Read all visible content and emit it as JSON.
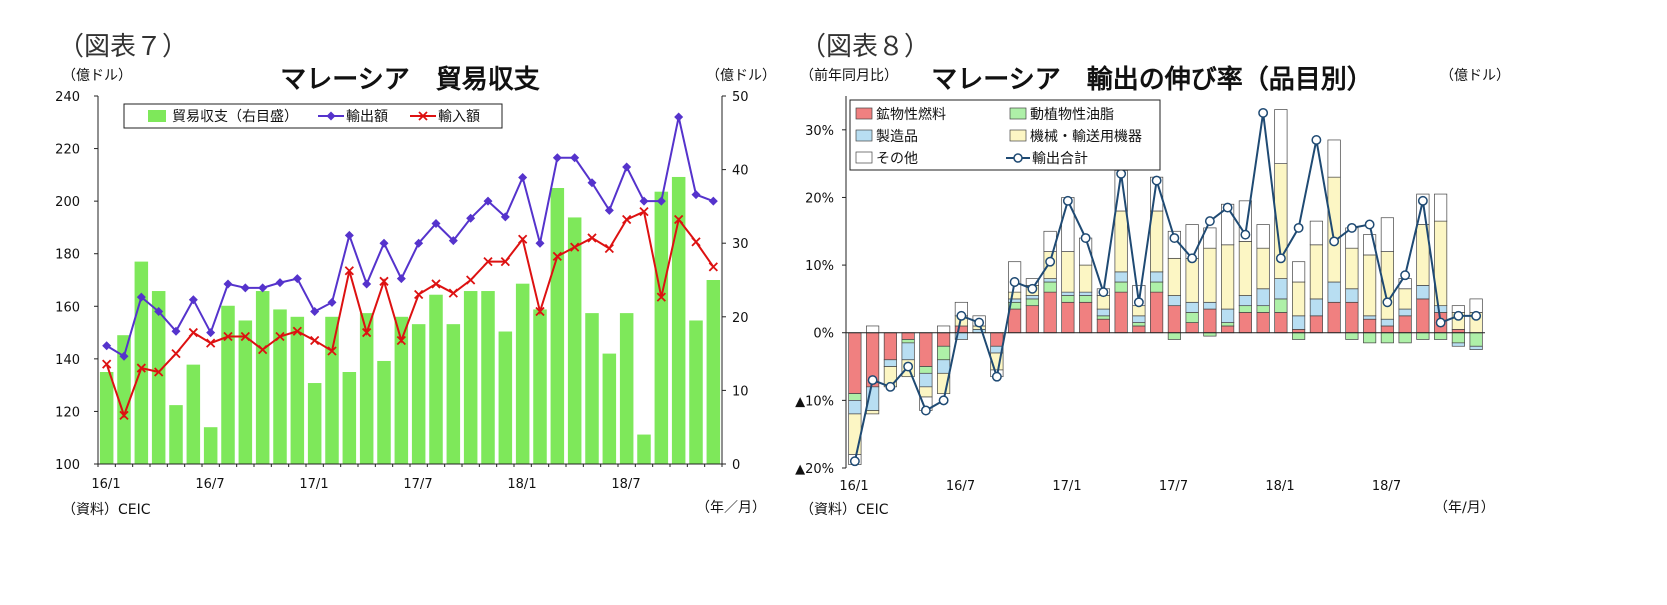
{
  "figures": {
    "fig7_label": "（図表７）",
    "fig8_label": "（図表８）"
  },
  "chart_data": [
    {
      "type": "bar+line",
      "title": "マレーシア　貿易収支",
      "left_unit": "（億ドル）",
      "right_unit": "（億ドル）",
      "x_unit": "（年／月）",
      "source": "（資料）CEIC",
      "left_axis": {
        "min": 100,
        "max": 240,
        "ticks": [
          100,
          120,
          140,
          160,
          180,
          200,
          220,
          240
        ]
      },
      "right_axis": {
        "min": 0,
        "max": 50,
        "ticks": [
          0,
          10,
          20,
          30,
          40,
          50
        ]
      },
      "x_labels": [
        {
          "i": 0,
          "text": "16/1"
        },
        {
          "i": 6,
          "text": "16/7"
        },
        {
          "i": 12,
          "text": "17/1"
        },
        {
          "i": 18,
          "text": "17/7"
        },
        {
          "i": 24,
          "text": "18/1"
        },
        {
          "i": 30,
          "text": "18/7"
        }
      ],
      "legend": {
        "bar": "貿易収支（右目盛）",
        "export": "輸出額",
        "import": "輸入額"
      },
      "colors": {
        "bar": "#7ee85a",
        "export": "#5533cc",
        "import": "#dd1111"
      },
      "trade_balance": [
        12.5,
        17.5,
        27.5,
        23.5,
        8,
        13.5,
        5,
        21.5,
        19.5,
        23.5,
        21,
        20,
        11,
        20,
        12.5,
        20.5,
        14,
        20,
        19,
        23,
        19,
        23.5,
        23.5,
        18,
        24.5,
        21,
        37.5,
        33.5,
        20.5,
        15,
        20.5,
        4,
        37,
        39,
        19.5,
        25
      ],
      "exports": [
        145,
        141,
        163.5,
        158,
        150.5,
        162.5,
        150,
        168.5,
        167,
        167,
        169,
        170.5,
        158,
        161.5,
        187,
        168.5,
        184,
        170.5,
        184,
        191.5,
        185,
        193.5,
        200,
        194,
        209,
        184,
        216.5,
        216.5,
        207,
        196.5,
        213,
        200,
        200,
        232,
        202.5,
        200
      ],
      "imports": [
        138,
        118.5,
        136.5,
        135,
        142,
        150,
        146,
        148.5,
        148.5,
        143.5,
        148.5,
        150.5,
        147,
        143,
        173.5,
        150,
        169.5,
        147,
        164.5,
        168.5,
        165,
        170,
        177,
        177,
        185.5,
        158,
        179,
        182.5,
        186,
        182,
        193,
        196,
        163.5,
        193,
        184.5,
        175
      ]
    },
    {
      "type": "stacked-bar+line",
      "title": "マレーシア　輸出の伸び率（品目別）",
      "left_unit": "（前年同月比）",
      "right_unit": "（億ドル）",
      "x_unit": "（年/月）",
      "source": "（資料）CEIC",
      "y_axis": {
        "min": -20,
        "max": 35,
        "ticks": [
          {
            "v": -20,
            "text": "▲20%"
          },
          {
            "v": -10,
            "text": "▲10%"
          },
          {
            "v": 0,
            "text": "0%"
          },
          {
            "v": 10,
            "text": "10%"
          },
          {
            "v": 20,
            "text": "20%"
          },
          {
            "v": 30,
            "text": "30%"
          }
        ]
      },
      "x_labels": [
        {
          "i": 0,
          "text": "16/1"
        },
        {
          "i": 6,
          "text": "16/7"
        },
        {
          "i": 12,
          "text": "17/1"
        },
        {
          "i": 18,
          "text": "17/7"
        },
        {
          "i": 24,
          "text": "18/1"
        },
        {
          "i": 30,
          "text": "18/7"
        }
      ],
      "legend": {
        "mineral": "鉱物性燃料",
        "oils": "動植物性油脂",
        "manufactured": "製造品",
        "machinery": "機械・輸送用機器",
        "other": "その他",
        "total": "輸出合計"
      },
      "colors": {
        "mineral": "#f08080",
        "oils": "#aef0a8",
        "manufactured": "#b8def2",
        "machinery": "#fcf6c4",
        "other": "#ffffff",
        "total": "#1f4a73"
      },
      "mineral": [
        -9,
        -8,
        -4,
        -1,
        -5,
        -2,
        1,
        0,
        -2,
        3.5,
        4,
        6,
        4.5,
        4.5,
        2,
        6,
        1,
        6,
        4,
        1.5,
        3.5,
        1,
        3,
        3,
        3,
        0.5,
        2.5,
        4.5,
        4.5,
        2,
        1,
        2.5,
        5,
        3,
        0.5,
        0
      ],
      "oils": [
        -1,
        0,
        0,
        -0.5,
        -1,
        -2,
        0,
        0,
        0,
        1,
        1,
        1.5,
        1,
        1,
        0.5,
        1.5,
        0.5,
        1.5,
        -1,
        1.5,
        -0.5,
        0.5,
        1,
        1,
        2,
        -1,
        0,
        0,
        -1,
        -1.5,
        -1.5,
        -1.5,
        -1,
        -1,
        -1.5,
        -2
      ],
      "manufactured": [
        -2,
        -3.5,
        -1,
        -2.5,
        -2,
        -2,
        -1,
        0.5,
        -1,
        0.5,
        0.5,
        0.5,
        0.5,
        0.5,
        1,
        1.5,
        1,
        1.5,
        1.5,
        1.5,
        1,
        2,
        1.5,
        2.5,
        3,
        2,
        2.5,
        3,
        2,
        0.5,
        1,
        1,
        2,
        1,
        -0.5,
        -0.5
      ],
      "machinery": [
        -6,
        -0.5,
        -3,
        -2.5,
        -1.5,
        -3,
        1.5,
        0.5,
        -2.5,
        1,
        1.5,
        4,
        6,
        4,
        2,
        9,
        1.5,
        9,
        5.5,
        6.5,
        8,
        9.5,
        8,
        6,
        17,
        5,
        8,
        15.5,
        6,
        9,
        10,
        3,
        9,
        12.5,
        2.5,
        3
      ],
      "other": [
        -1.5,
        1,
        0,
        0,
        -2,
        1,
        2,
        1.5,
        -1,
        4.5,
        1,
        3,
        8,
        4,
        1,
        6,
        3,
        5,
        4,
        5,
        3,
        6,
        6,
        3.5,
        8,
        3,
        3.5,
        5.5,
        3,
        3,
        5,
        1.5,
        4.5,
        4,
        1,
        2
      ],
      "total": [
        -19,
        -7,
        -8,
        -5,
        -11.5,
        -10,
        2.5,
        1.5,
        -6.5,
        7.5,
        6.5,
        10.5,
        19.5,
        14,
        6,
        23.5,
        4.5,
        22.5,
        14,
        11,
        16.5,
        18.5,
        14.5,
        32.5,
        11,
        15.5,
        28.5,
        13.5,
        15.5,
        16,
        4.5,
        8.5,
        19.5,
        1.5,
        2.5,
        2.5
      ]
    }
  ]
}
